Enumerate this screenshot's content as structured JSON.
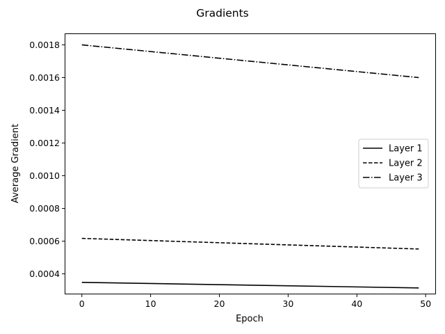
{
  "chart_data": {
    "type": "line",
    "title": "Gradients",
    "xlabel": "Epoch",
    "ylabel": "Average Gradient",
    "xlim": [
      -2.45,
      51.45
    ],
    "ylim": [
      0.000277,
      0.001868
    ],
    "xticks": [
      0,
      10,
      20,
      30,
      40,
      50
    ],
    "xtick_labels": [
      "0",
      "10",
      "20",
      "30",
      "40",
      "50"
    ],
    "yticks": [
      0.0004,
      0.0006,
      0.0008,
      0.001,
      0.0012,
      0.0014,
      0.0016,
      0.0018
    ],
    "ytick_labels": [
      "0.0004",
      "0.0006",
      "0.0008",
      "0.0010",
      "0.0012",
      "0.0014",
      "0.0016",
      "0.0018"
    ],
    "grid": false,
    "legend_position": "center-right",
    "x": [
      0,
      49
    ],
    "series": [
      {
        "name": "Layer 1",
        "style": "solid",
        "color": "#000000",
        "values": [
          0.000348,
          0.000314
        ]
      },
      {
        "name": "Layer 2",
        "style": "dashed",
        "color": "#000000",
        "values": [
          0.000617,
          0.000552
        ]
      },
      {
        "name": "Layer 3",
        "style": "dashdot",
        "color": "#000000",
        "values": [
          0.0018,
          0.0016
        ]
      }
    ]
  }
}
